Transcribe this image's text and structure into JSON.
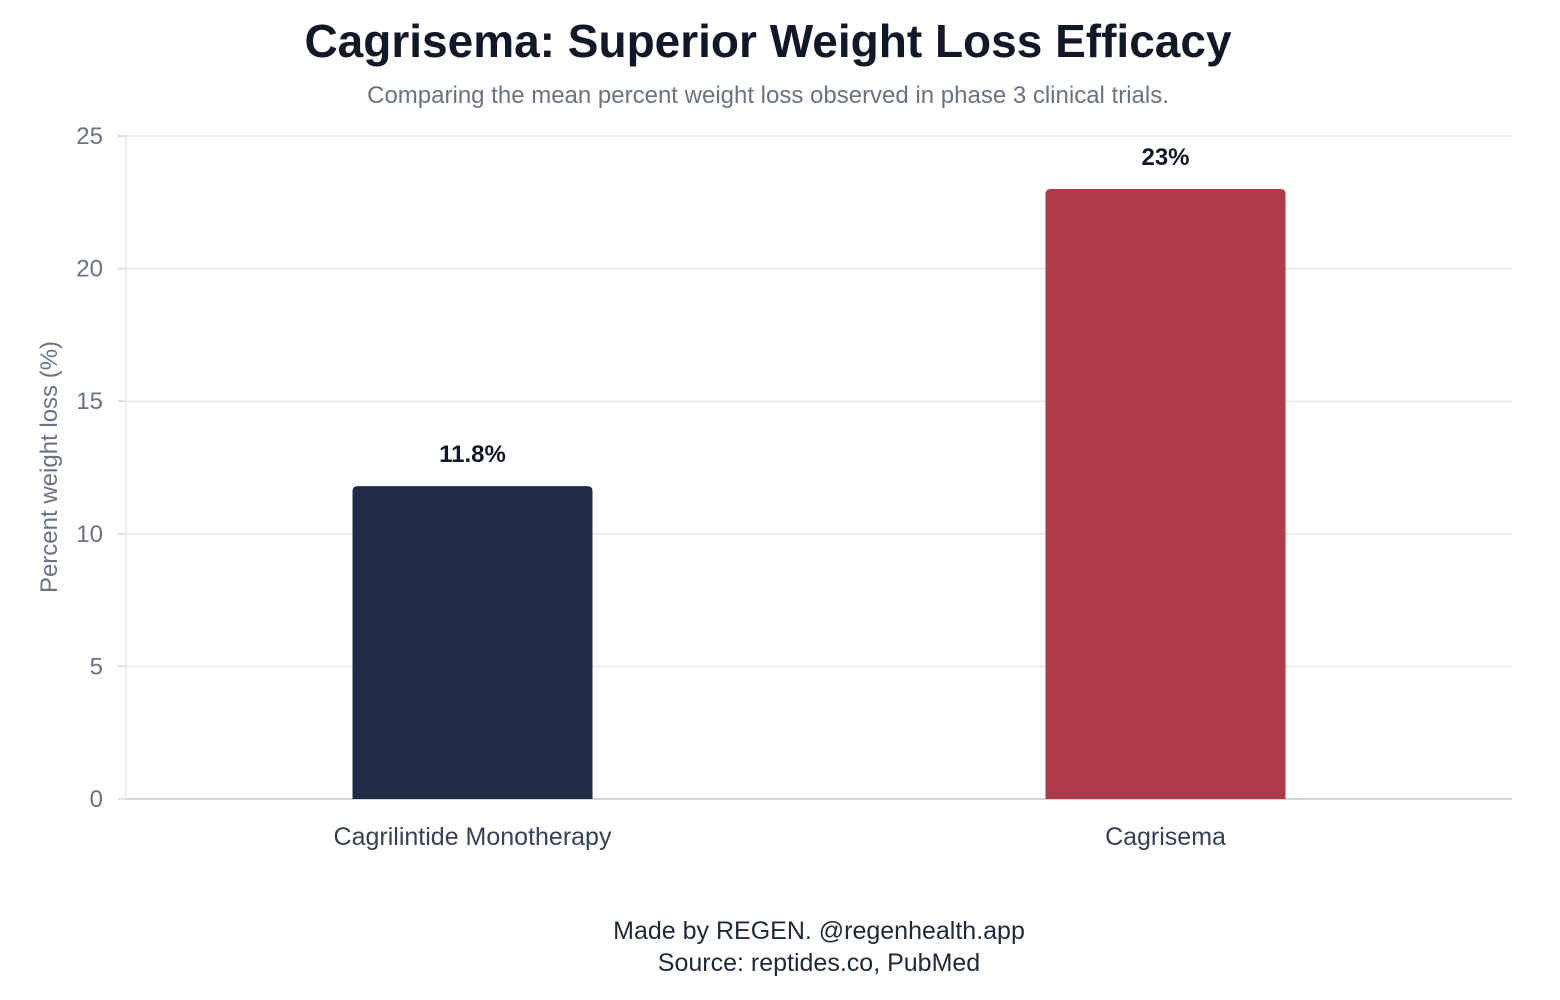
{
  "chart_data": {
    "type": "bar",
    "title": "Cagrisema: Superior Weight Loss Efficacy",
    "subtitle": "Comparing the mean percent weight loss observed in phase 3 clinical trials.",
    "xlabel": "",
    "ylabel": "Percent weight loss (%)",
    "categories": [
      "Cagrilintide Monotherapy",
      "Cagrisema"
    ],
    "values": [
      11.8,
      23
    ],
    "data_labels": [
      "11.8%",
      "23%"
    ],
    "bar_colors": [
      "#202b45",
      "#b03a48"
    ],
    "ylim": [
      0,
      25
    ],
    "yticks": [
      0,
      5,
      10,
      15,
      20,
      25
    ],
    "grid": true,
    "legend": "none"
  },
  "footer": {
    "credit": "Made by REGEN. @regenhealth.app",
    "source": "Source: reptides.co, PubMed"
  }
}
